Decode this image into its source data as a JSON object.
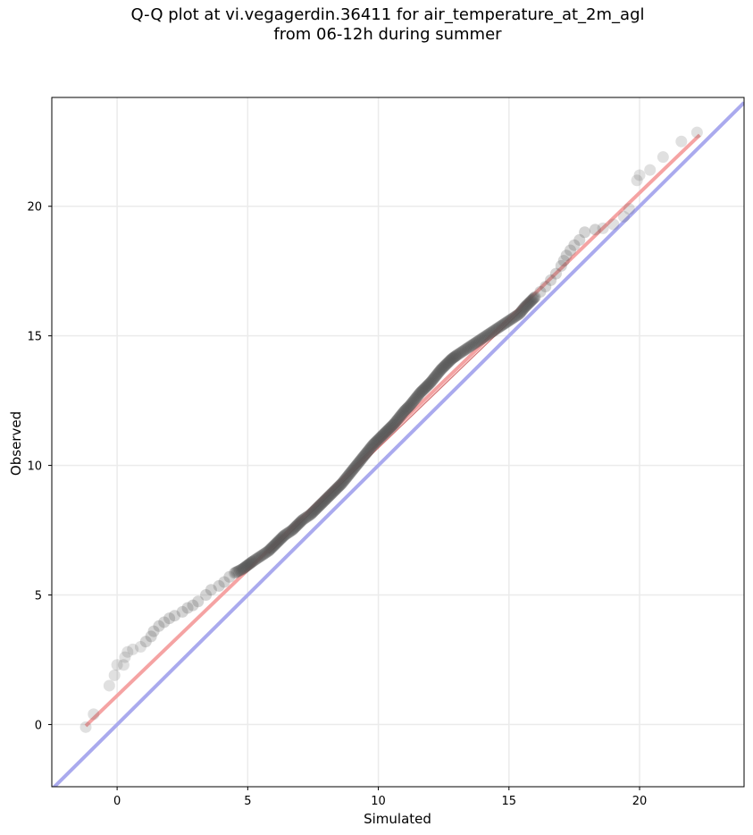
{
  "chart_data": {
    "type": "scatter",
    "title_line1": "Q-Q plot at vi.vegagerdin.36411 for air_temperature_at_2m_agl",
    "title_line2": "from 06-12h during summer",
    "xlabel": "Simulated",
    "ylabel": "Observed",
    "xlim": [
      -2.5,
      24.0
    ],
    "ylim": [
      -2.4,
      24.2
    ],
    "xticks": [
      0,
      5,
      10,
      15,
      20
    ],
    "yticks": [
      0,
      5,
      10,
      15,
      20
    ],
    "grid": true,
    "identity_line": {
      "color": "#aaaaee",
      "points": [
        [
          -2.5,
          -2.5
        ],
        [
          24.0,
          24.0
        ]
      ]
    },
    "fit_line": {
      "color": "#f5a3a3",
      "points": [
        [
          -1.2,
          -0.05
        ],
        [
          22.3,
          22.75
        ]
      ]
    },
    "marker_color": "#555555",
    "points": [
      [
        -1.2,
        -0.1
      ],
      [
        -0.9,
        0.4
      ],
      [
        -0.3,
        1.5
      ],
      [
        -0.1,
        1.9
      ],
      [
        0.0,
        2.3
      ],
      [
        0.25,
        2.3
      ],
      [
        0.3,
        2.6
      ],
      [
        0.4,
        2.8
      ],
      [
        0.6,
        2.9
      ],
      [
        0.9,
        3.0
      ],
      [
        1.1,
        3.2
      ],
      [
        1.3,
        3.4
      ],
      [
        1.4,
        3.6
      ],
      [
        1.6,
        3.8
      ],
      [
        1.8,
        3.95
      ],
      [
        2.0,
        4.1
      ],
      [
        2.2,
        4.2
      ],
      [
        2.5,
        4.35
      ],
      [
        2.7,
        4.5
      ],
      [
        2.9,
        4.6
      ],
      [
        3.1,
        4.75
      ],
      [
        3.4,
        5.0
      ],
      [
        3.6,
        5.2
      ],
      [
        3.9,
        5.35
      ],
      [
        4.1,
        5.5
      ],
      [
        4.3,
        5.7
      ],
      [
        4.5,
        5.85
      ],
      [
        4.8,
        6.0
      ],
      [
        5.0,
        6.15
      ],
      [
        5.2,
        6.3
      ],
      [
        5.5,
        6.5
      ],
      [
        5.8,
        6.7
      ],
      [
        6.0,
        6.9
      ],
      [
        6.2,
        7.1
      ],
      [
        6.4,
        7.3
      ],
      [
        6.7,
        7.5
      ],
      [
        6.9,
        7.7
      ],
      [
        7.1,
        7.9
      ],
      [
        7.4,
        8.1
      ],
      [
        7.6,
        8.3
      ],
      [
        7.8,
        8.5
      ],
      [
        8.0,
        8.7
      ],
      [
        8.2,
        8.9
      ],
      [
        8.4,
        9.1
      ],
      [
        8.6,
        9.3
      ],
      [
        8.8,
        9.55
      ],
      [
        9.0,
        9.8
      ],
      [
        9.2,
        10.05
      ],
      [
        9.4,
        10.3
      ],
      [
        9.6,
        10.55
      ],
      [
        9.8,
        10.8
      ],
      [
        10.0,
        11.0
      ],
      [
        10.2,
        11.2
      ],
      [
        10.4,
        11.4
      ],
      [
        10.6,
        11.6
      ],
      [
        10.8,
        11.85
      ],
      [
        11.0,
        12.1
      ],
      [
        11.2,
        12.3
      ],
      [
        11.4,
        12.55
      ],
      [
        11.6,
        12.8
      ],
      [
        11.8,
        13.0
      ],
      [
        12.0,
        13.2
      ],
      [
        12.2,
        13.45
      ],
      [
        12.4,
        13.7
      ],
      [
        12.6,
        13.9
      ],
      [
        12.8,
        14.1
      ],
      [
        13.0,
        14.25
      ],
      [
        13.3,
        14.45
      ],
      [
        13.6,
        14.65
      ],
      [
        13.9,
        14.85
      ],
      [
        14.2,
        15.05
      ],
      [
        14.5,
        15.25
      ],
      [
        14.8,
        15.45
      ],
      [
        15.1,
        15.65
      ],
      [
        15.4,
        15.85
      ],
      [
        15.6,
        16.1
      ],
      [
        15.8,
        16.3
      ],
      [
        16.0,
        16.5
      ],
      [
        16.2,
        16.7
      ],
      [
        16.4,
        16.9
      ],
      [
        16.6,
        17.15
      ],
      [
        16.8,
        17.4
      ],
      [
        17.0,
        17.7
      ],
      [
        17.1,
        17.9
      ],
      [
        17.2,
        18.1
      ],
      [
        17.35,
        18.3
      ],
      [
        17.5,
        18.5
      ],
      [
        17.7,
        18.7
      ],
      [
        17.9,
        19.0
      ],
      [
        18.3,
        19.1
      ],
      [
        18.6,
        19.15
      ],
      [
        19.0,
        19.3
      ],
      [
        19.4,
        19.6
      ],
      [
        19.6,
        19.9
      ],
      [
        19.9,
        21.0
      ],
      [
        20.0,
        21.2
      ],
      [
        20.4,
        21.4
      ],
      [
        20.9,
        21.9
      ],
      [
        21.6,
        22.5
      ],
      [
        22.2,
        22.85
      ]
    ]
  }
}
